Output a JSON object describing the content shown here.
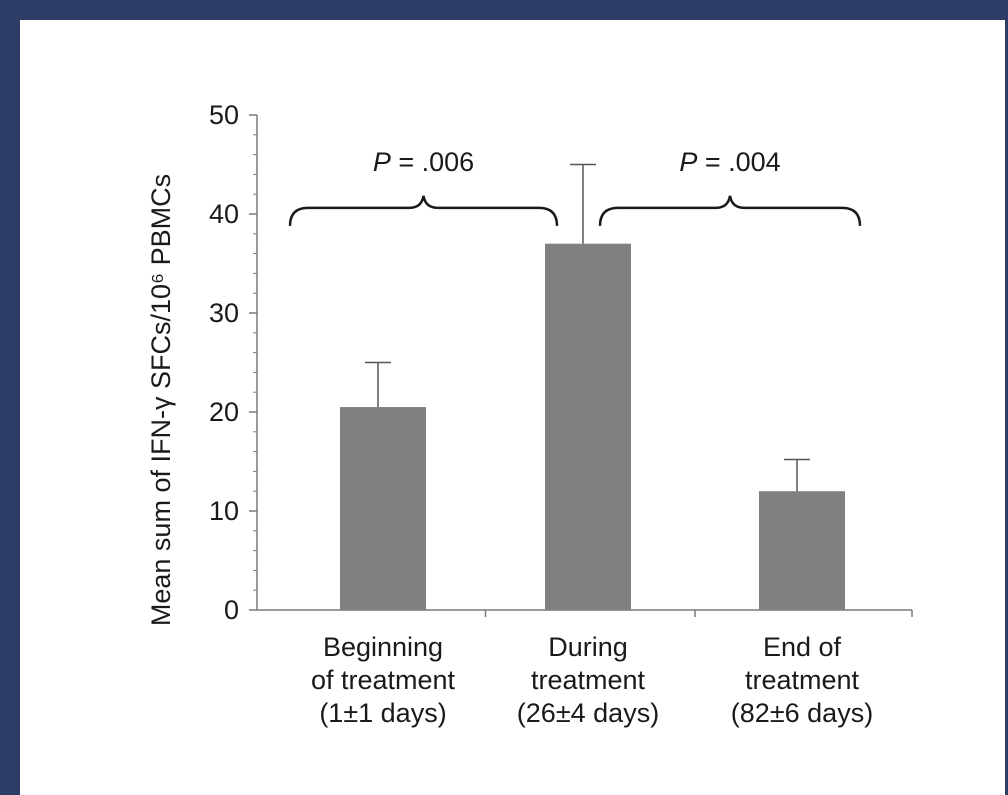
{
  "colors": {
    "page_background": "#2e3d66",
    "panel_background": "#ffffff",
    "bar_fill": "#808080",
    "axis_color": "#7a7a7a",
    "text_color": "#1a1a1a"
  },
  "chart_data": {
    "type": "bar",
    "ylabel": "Mean sum of IFN-γ SFCs/10⁶ PBMCs",
    "ylim": [
      0,
      50
    ],
    "yticks": [
      0,
      10,
      20,
      30,
      40,
      50
    ],
    "grid": false,
    "categories": [
      [
        "Beginning",
        "of treatment",
        "(1±1 days)"
      ],
      [
        "During",
        "treatment",
        "(26±4 days)"
      ],
      [
        "End of",
        "treatment",
        "(82±6 days)"
      ]
    ],
    "values": [
      20.5,
      37,
      12
    ],
    "error_upper": [
      25,
      45,
      15.2
    ],
    "annotations": [
      {
        "label": "P = .006",
        "from_category": 0,
        "to_category": 1,
        "y": 38.5
      },
      {
        "label": "P = .004",
        "from_category": 1,
        "to_category": 2,
        "y": 38.5
      }
    ]
  }
}
